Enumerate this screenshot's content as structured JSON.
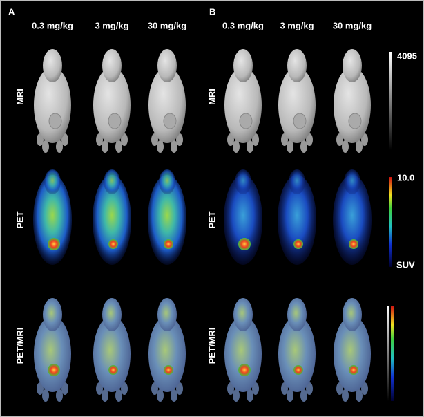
{
  "panels": [
    {
      "label": "A",
      "columns": [
        "0.3 mg/kg",
        "3 mg/kg",
        "30 mg/kg"
      ],
      "rows": [
        "MRI",
        "PET",
        "PET/MRI"
      ]
    },
    {
      "label": "B",
      "columns": [
        "0.3 mg/kg",
        "3 mg/kg",
        "30 mg/kg"
      ],
      "rows": [
        "MRI",
        "PET",
        "PET/MRI"
      ]
    }
  ],
  "scales": {
    "mri": {
      "max": "4095"
    },
    "pet": {
      "max": "10.0",
      "unit": "SUV"
    }
  }
}
